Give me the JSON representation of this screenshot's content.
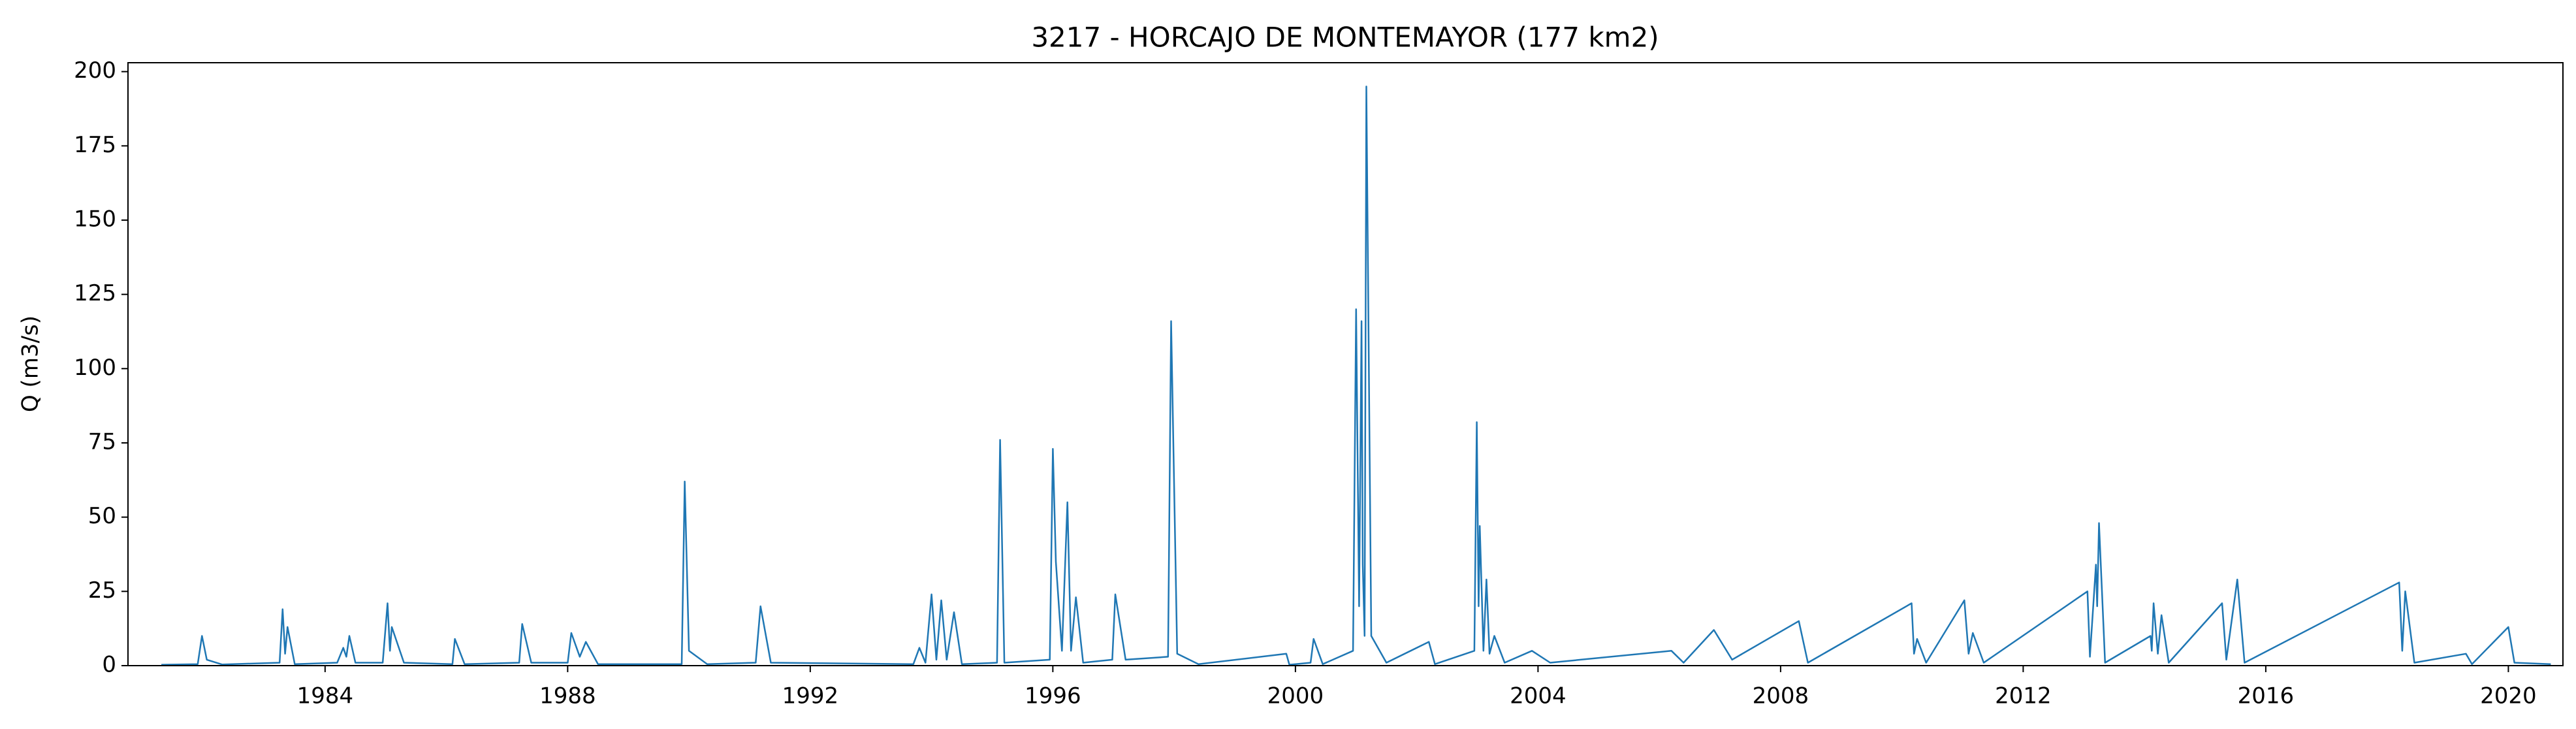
{
  "chart_data": {
    "type": "line",
    "title": "3217 - HORCAJO DE MONTEMAYOR (177 km2)",
    "y_label": "Q (m3/s)",
    "xlim": [
      1980.75,
      2020.9
    ],
    "ylim": [
      0,
      203
    ],
    "xticks": [
      1984,
      1988,
      1992,
      1996,
      2000,
      2004,
      2008,
      2012,
      2016,
      2020
    ],
    "yticks": [
      0,
      25,
      50,
      75,
      100,
      125,
      150,
      175,
      200
    ],
    "grid": false,
    "series": [
      {
        "color": "#1f77b4",
        "x": [
          1981.3,
          1981.9,
          1981.97,
          1982.05,
          1982.3,
          1983.25,
          1983.3,
          1983.34,
          1983.38,
          1983.5,
          1984.2,
          1984.3,
          1984.35,
          1984.4,
          1984.5,
          1984.95,
          1985.03,
          1985.07,
          1985.1,
          1985.3,
          1986.1,
          1986.14,
          1986.3,
          1987.2,
          1987.25,
          1987.4,
          1988.0,
          1988.06,
          1988.2,
          1988.3,
          1988.5,
          1989.88,
          1989.93,
          1990.0,
          1990.3,
          1991.1,
          1991.18,
          1991.35,
          1993.7,
          1993.8,
          1993.9,
          1994.0,
          1994.08,
          1994.16,
          1994.25,
          1994.37,
          1994.5,
          1995.08,
          1995.13,
          1995.2,
          1995.95,
          1996.0,
          1996.05,
          1996.15,
          1996.24,
          1996.3,
          1996.38,
          1996.5,
          1996.98,
          1997.03,
          1997.2,
          1997.9,
          1997.95,
          1998.05,
          1998.4,
          1999.85,
          1999.9,
          2000.25,
          2000.3,
          2000.45,
          2000.95,
          2001.0,
          2001.05,
          2001.09,
          2001.11,
          2001.14,
          2001.17,
          2001.25,
          2001.5,
          2002.2,
          2002.3,
          2002.95,
          2002.99,
          2003.02,
          2003.04,
          2003.1,
          2003.15,
          2003.2,
          2003.28,
          2003.45,
          2003.9,
          2004.2,
          2006.2,
          2006.4,
          2006.9,
          2007.2,
          2008.3,
          2008.45,
          2010.16,
          2010.2,
          2010.25,
          2010.4,
          2011.03,
          2011.1,
          2011.17,
          2011.35,
          2013.06,
          2013.1,
          2013.2,
          2013.22,
          2013.25,
          2013.35,
          2014.1,
          2014.12,
          2014.15,
          2014.22,
          2014.28,
          2014.4,
          2015.28,
          2015.35,
          2015.53,
          2015.65,
          2018.2,
          2018.25,
          2018.3,
          2018.45,
          2019.3,
          2019.4,
          2020.0,
          2020.1,
          2020.7
        ],
        "values": [
          0.3,
          0.5,
          10,
          2,
          0.4,
          1,
          19,
          4,
          13,
          0.5,
          1,
          6,
          3,
          10,
          1,
          1,
          21,
          5,
          13,
          1,
          0.5,
          9,
          0.5,
          1,
          14,
          1,
          1,
          11,
          3,
          8,
          0.5,
          0.5,
          62,
          5,
          0.5,
          1,
          20,
          1,
          0.5,
          6,
          1,
          24,
          2,
          22,
          2,
          18,
          0.5,
          1,
          76,
          1,
          2,
          73,
          35,
          5,
          55,
          5,
          23,
          1,
          2,
          24,
          2,
          3,
          116,
          4,
          0.5,
          4,
          0.3,
          1,
          9,
          0.5,
          5,
          120,
          20,
          116,
          34,
          10,
          195,
          10,
          1,
          8,
          0.5,
          5,
          82,
          20,
          47,
          5,
          29,
          4,
          10,
          1,
          5,
          1,
          5,
          1,
          12,
          2,
          15,
          1,
          21,
          4,
          9,
          1,
          22,
          4,
          11,
          1,
          25,
          3,
          34,
          20,
          48,
          1,
          10,
          5,
          21,
          4,
          17,
          1,
          21,
          2,
          29,
          1,
          28,
          5,
          25,
          1,
          4,
          0.5,
          13,
          1,
          0.5
        ]
      }
    ]
  }
}
